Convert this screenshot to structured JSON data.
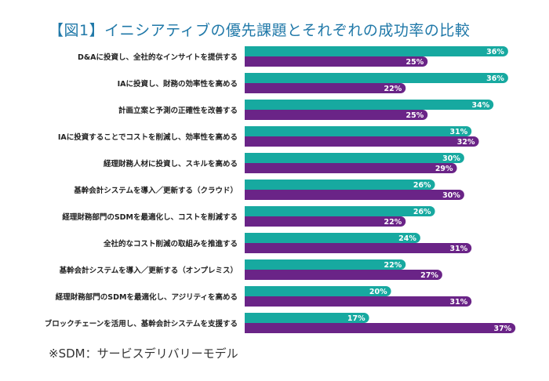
{
  "title": "【図1】イニシアティブの優先課題とそれぞれの成功率の比較",
  "footnote": "※SDM：サービスデリバリーモデル",
  "colors": {
    "series1": "#17a9a0",
    "series2": "#6a2487",
    "title": "#1f78a8"
  },
  "chart_data": {
    "type": "bar",
    "orientation": "horizontal",
    "title": "【図1】イニシアティブの優先課題とそれぞれの成功率の比較",
    "categories": [
      "D&Aに投資し、全社的なインサイトを提供する",
      "IAに投資し、財務の効率性を高める",
      "計画立案と予測の正確性を改善する",
      "IAに投資することでコストを削減し、効率性を高める",
      "経理財務人材に投資し、スキルを高める",
      "基幹会計システムを導入／更新する（クラウド）",
      "経理財務部門のSDMを最適化し、コストを削減する",
      "全社的なコスト削減の取組みを推進する",
      "基幹会計システムを導入／更新する（オンプレミス）",
      "経理財務部門のSDMを最適化し、アジリティを高める",
      "ブロックチェーンを活用し、基幹会計システムを支援する"
    ],
    "series": [
      {
        "values": [
          36,
          36,
          34,
          31,
          30,
          26,
          26,
          24,
          22,
          20,
          17
        ],
        "color": "#17a9a0"
      },
      {
        "values": [
          25,
          22,
          25,
          32,
          29,
          30,
          22,
          31,
          27,
          31,
          37
        ],
        "color": "#6a2487"
      }
    ],
    "value_format": "{v}%",
    "xlim": [
      0,
      40
    ],
    "grid": false,
    "legend": "none",
    "xlabel": "",
    "ylabel": ""
  }
}
